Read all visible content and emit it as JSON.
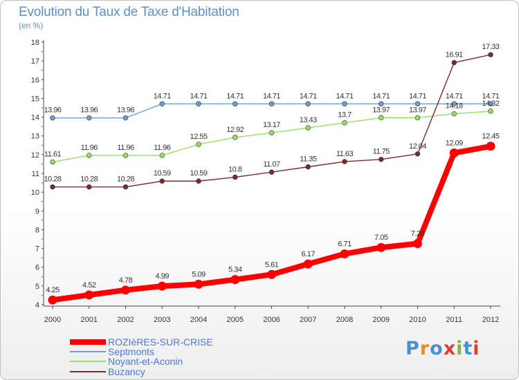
{
  "title": "Evolution du Taux de Taxe d'Habitation",
  "unit": "(en %)",
  "logo_text": "Proxiti",
  "logo_colors": [
    "#4a90d0",
    "#f08a1c",
    "#4a90d0",
    "#e03c2c",
    "#7cb83a",
    "#4a90d0",
    "#e03c2c"
  ],
  "chart_data": {
    "type": "line",
    "x": [
      2000,
      2001,
      2002,
      2003,
      2004,
      2005,
      2006,
      2007,
      2008,
      2009,
      2010,
      2011,
      2012
    ],
    "ylim": [
      4,
      18
    ],
    "yticks": [
      4,
      5,
      6,
      7,
      8,
      9,
      10,
      11,
      12,
      13,
      14,
      15,
      16,
      17,
      18
    ],
    "grid": false,
    "legend_position": "bottom-left",
    "series": [
      {
        "name": "ROZIèRES-SUR-CRISE",
        "color": "#ff0000",
        "values": [
          4.25,
          4.52,
          4.78,
          4.99,
          5.09,
          5.34,
          5.61,
          6.17,
          6.71,
          7.05,
          7.26,
          12.09,
          12.45
        ],
        "labels": [
          "4.25",
          "4.52",
          "4.78",
          "4.99",
          "5.09",
          "5.34",
          "5.61",
          "6.17",
          "6.71",
          "7.05",
          "7.26",
          "12.09",
          "12.45"
        ]
      },
      {
        "name": "Septmonts",
        "color": "#6aa0d6",
        "values": [
          13.96,
          13.96,
          13.96,
          14.71,
          14.71,
          14.71,
          14.71,
          14.71,
          14.71,
          14.71,
          14.71,
          14.71,
          14.71
        ],
        "labels": [
          "13.96",
          "13.96",
          "13.96",
          "14.71",
          "14.71",
          "14.71",
          "14.71",
          "14.71",
          "14.71",
          "14.71",
          "14.71",
          "14.71",
          "14.71"
        ]
      },
      {
        "name": "Noyant-et-Aconin",
        "color": "#99dd66",
        "values": [
          11.61,
          11.96,
          11.96,
          11.96,
          12.55,
          12.92,
          13.17,
          13.43,
          13.7,
          13.97,
          13.97,
          14.18,
          14.32
        ],
        "labels": [
          "11.61",
          "11.96",
          "11.96",
          "11.96",
          "12.55",
          "12.92",
          "13.17",
          "13.43",
          "13.7",
          "13.97",
          "13.97",
          "14.18",
          "14.32"
        ]
      },
      {
        "name": "Buzancy",
        "color": "#7a2a2a",
        "values": [
          10.28,
          10.28,
          10.28,
          10.59,
          10.59,
          10.8,
          11.07,
          11.35,
          11.63,
          11.75,
          12.04,
          16.91,
          17.33
        ],
        "labels": [
          "10.28",
          "10.28",
          "10.28",
          "10.59",
          "10.59",
          "10.8",
          "11.07",
          "11.35",
          "11.63",
          "11.75",
          "12.04",
          "16.91",
          "17.33"
        ]
      }
    ]
  }
}
